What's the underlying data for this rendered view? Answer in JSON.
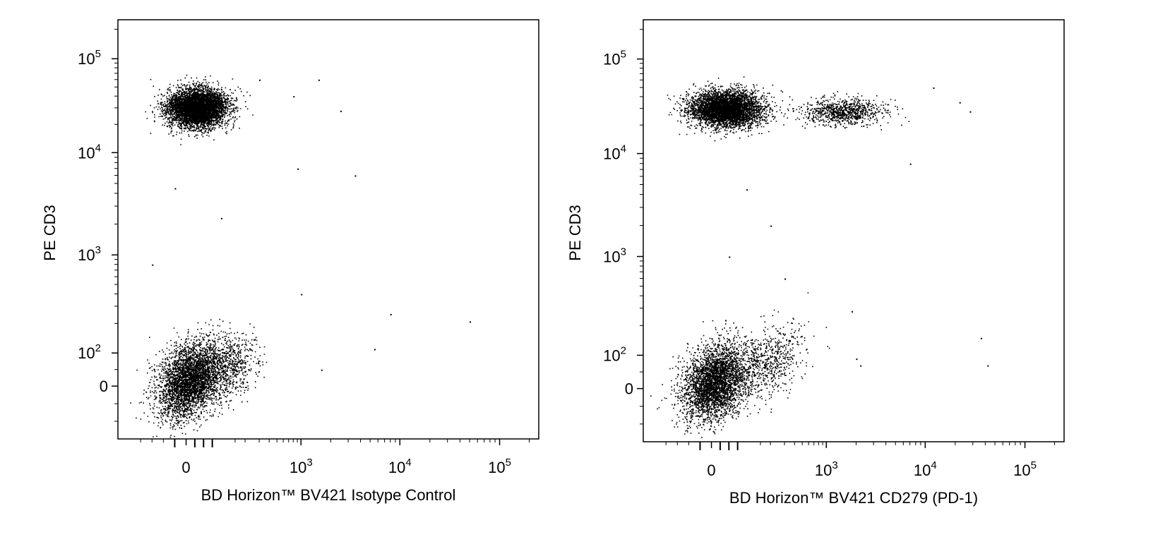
{
  "chart_data": [
    {
      "type": "scatter",
      "title": "",
      "xlabel": "BD Horizon™ BV421 Isotype Control",
      "ylabel": "PE CD3",
      "x_scale": "biexponential",
      "y_scale": "biexponential",
      "xlim": [
        -300,
        250000
      ],
      "ylim": [
        -300,
        250000
      ],
      "x_ticks": [
        {
          "value": 0,
          "base": "0",
          "exp": ""
        },
        {
          "value": 1000,
          "base": "10",
          "exp": "3"
        },
        {
          "value": 10000,
          "base": "10",
          "exp": "4"
        },
        {
          "value": 100000,
          "base": "10",
          "exp": "5"
        }
      ],
      "y_ticks": [
        {
          "value": 0,
          "base": "0",
          "exp": ""
        },
        {
          "value": 100,
          "base": "10",
          "exp": "2"
        },
        {
          "value": 1000,
          "base": "10",
          "exp": "3"
        },
        {
          "value": 10000,
          "base": "10",
          "exp": "4"
        },
        {
          "value": 100000,
          "base": "10",
          "exp": "5"
        }
      ],
      "series": [
        {
          "center": [
            30,
            30000
          ],
          "count": 5200,
          "spread": [
            0.5,
            0.32
          ],
          "color": "#000000"
        },
        {
          "center": [
            10,
            20
          ],
          "count": 3600,
          "spread": [
            0.55,
            0.6
          ],
          "color": "#000000"
        },
        {
          "center": [
            120,
            60
          ],
          "count": 650,
          "spread": [
            0.5,
            0.55
          ],
          "color": "#000000"
        }
      ],
      "outliers": [
        [
          800,
          40000
        ],
        [
          1500,
          60000
        ],
        [
          2500,
          28000
        ],
        [
          3500,
          6000
        ],
        [
          900,
          7000
        ],
        [
          8000,
          250
        ],
        [
          50000,
          210
        ],
        [
          5500,
          110
        ],
        [
          1600,
          50
        ],
        [
          1000,
          400
        ],
        [
          300,
          60000
        ],
        [
          -150,
          800
        ],
        [
          100,
          2300
        ],
        [
          -50,
          4500
        ]
      ]
    },
    {
      "type": "scatter",
      "title": "",
      "xlabel": "BD Horizon™ BV421 CD279 (PD-1)",
      "ylabel": "PE CD3",
      "x_scale": "biexponential",
      "y_scale": "biexponential",
      "xlim": [
        -300,
        250000
      ],
      "ylim": [
        -300,
        250000
      ],
      "x_ticks": [
        {
          "value": 0,
          "base": "0",
          "exp": ""
        },
        {
          "value": 1000,
          "base": "10",
          "exp": "3"
        },
        {
          "value": 10000,
          "base": "10",
          "exp": "4"
        },
        {
          "value": 100000,
          "base": "10",
          "exp": "5"
        }
      ],
      "y_ticks": [
        {
          "value": 0,
          "base": "0",
          "exp": ""
        },
        {
          "value": 100,
          "base": "10",
          "exp": "2"
        },
        {
          "value": 1000,
          "base": "10",
          "exp": "3"
        },
        {
          "value": 10000,
          "base": "10",
          "exp": "4"
        },
        {
          "value": 100000,
          "base": "10",
          "exp": "5"
        }
      ],
      "series": [
        {
          "center": [
            40,
            30000
          ],
          "count": 4600,
          "spread": [
            0.6,
            0.3
          ],
          "color": "#000000"
        },
        {
          "center": [
            1500,
            28000
          ],
          "count": 900,
          "spread": [
            0.7,
            0.22
          ],
          "color": "#000000"
        },
        {
          "center": [
            10,
            20
          ],
          "count": 3600,
          "spread": [
            0.55,
            0.6
          ],
          "color": "#000000"
        },
        {
          "center": [
            200,
            80
          ],
          "count": 600,
          "spread": [
            0.55,
            0.6
          ],
          "color": "#000000"
        }
      ],
      "outliers": [
        [
          12000,
          50000
        ],
        [
          22000,
          35000
        ],
        [
          28000,
          28000
        ],
        [
          7000,
          8000
        ],
        [
          36000,
          150
        ],
        [
          42000,
          70
        ],
        [
          2000,
          90
        ],
        [
          2200,
          70
        ],
        [
          1800,
          280
        ],
        [
          100,
          4500
        ],
        [
          50,
          1000
        ],
        [
          200,
          2000
        ],
        [
          300,
          600
        ]
      ]
    }
  ]
}
